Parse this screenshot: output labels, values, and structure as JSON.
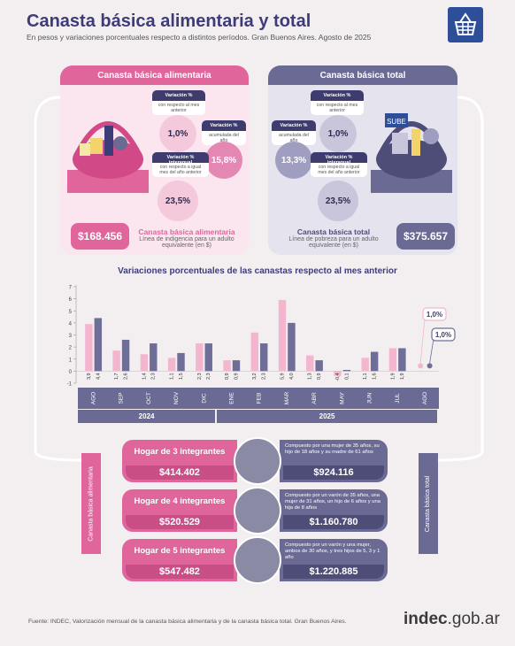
{
  "header": {
    "title": "Canasta básica alimentaria y total",
    "subtitle": "En pesos y variaciones porcentuales respecto a distintos períodos. Gran Buenos Aires. Agosto de 2025"
  },
  "cba": {
    "title": "Canasta básica alimentaria",
    "var_mensual": {
      "label": "Variación %",
      "sub": "con respecto al mes anterior",
      "value": "1,0%"
    },
    "var_acumulada": {
      "label": "Variación %",
      "sub": "acumulada del año",
      "value": "15,8%"
    },
    "var_interanual": {
      "label": "Variación % interanual",
      "sub": "con respecto a igual mes del año anterior",
      "value": "23,5%"
    },
    "amount": "$168.456",
    "amount_label": "Canasta básica alimentaria",
    "amount_sub": "Línea de indigencia para un adulto equivalente (en $)"
  },
  "cbt": {
    "title": "Canasta básica total",
    "var_mensual": {
      "label": "Variación %",
      "sub": "con respecto al mes anterior",
      "value": "1,0%"
    },
    "var_acumulada": {
      "label": "Variación %",
      "sub": "acumulada del año",
      "value": "13,3%"
    },
    "var_interanual": {
      "label": "Variación % interanual",
      "sub": "con respecto a igual mes del año anterior",
      "value": "23,5%"
    },
    "amount": "$375.657",
    "amount_label": "Canasta básica total",
    "amount_sub": "Línea de pobreza para un adulto equivalente (en $)"
  },
  "basket_tag": "SUBE",
  "chart_data": {
    "type": "bar",
    "title": "Variaciones porcentuales de las canastas respecto al mes anterior",
    "categories": [
      "AGO",
      "SEP",
      "OCT",
      "NOV",
      "DIC",
      "ENE",
      "FEB",
      "MAR",
      "ABR",
      "MAY",
      "JUN",
      "JUL",
      "AGO"
    ],
    "years": [
      {
        "label": "2024",
        "from": 0,
        "to": 4
      },
      {
        "label": "2025",
        "from": 5,
        "to": 12
      }
    ],
    "series": [
      {
        "name": "Canasta básica alimentaria",
        "color": "#f4b6cf",
        "values": [
          3.9,
          1.7,
          1.4,
          1.1,
          2.3,
          0.9,
          3.2,
          5.9,
          1.3,
          -0.4,
          1.1,
          1.9,
          1.0
        ],
        "labels": [
          "3,9",
          "1,7",
          "1,4",
          "1,1",
          "2,3",
          "0,9",
          "3,2",
          "5,9",
          "1,3",
          "-0,4",
          "1,1",
          "1,9",
          "1,0%"
        ]
      },
      {
        "name": "Canasta básica total",
        "color": "#6f6e98",
        "values": [
          4.4,
          2.6,
          2.3,
          1.5,
          2.3,
          0.9,
          2.3,
          4.0,
          0.9,
          0.1,
          1.6,
          1.9,
          1.0
        ],
        "labels": [
          "4,4",
          "2,6",
          "2,3",
          "1,5",
          "2,3",
          "0,9",
          "2,3",
          "4,0",
          "0,9",
          "0,1",
          "1,6",
          "1,9",
          "1,0%"
        ]
      }
    ],
    "ylim": [
      -1,
      7
    ],
    "yticks": [
      -1,
      0,
      1,
      2,
      3,
      4,
      5,
      6,
      7
    ],
    "grid": false,
    "legend": "none"
  },
  "side_labels": {
    "left": "Canasta básica alimentaria",
    "right": "Canasta básica total"
  },
  "hogares": [
    {
      "name": "Hogar de 3 integrantes",
      "cba": "$414.402",
      "cbt": "$924.116",
      "desc": "Compuesto por una mujer de 35 años, su hijo de 18 años y su madre de 61 años"
    },
    {
      "name": "Hogar de 4 integrantes",
      "cba": "$520.529",
      "cbt": "$1.160.780",
      "desc": "Compuesto por un varón de 35 años, una mujer de 31 años, un hijo de 6 años y una hija de 8 años"
    },
    {
      "name": "Hogar de 5 integrantes",
      "cba": "$547.482",
      "cbt": "$1.220.885",
      "desc": "Compuesto por un varón y una mujer, ambos de 30 años, y tres hijos de 5, 3 y 1 año"
    }
  ],
  "footer": {
    "source": "Fuente: INDEC, Valorización mensual de la canasta básica alimentaria y de la canasta básica total. Gran Buenos Aires.",
    "brand_main": "indec",
    "brand_suffix": ".gob.ar"
  }
}
